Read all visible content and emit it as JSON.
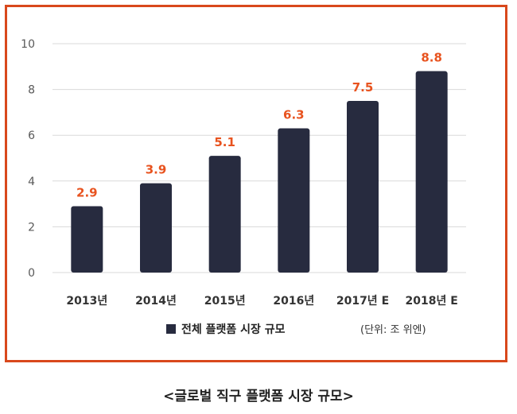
{
  "chart_data": {
    "type": "bar",
    "categories": [
      "2013년",
      "2014년",
      "2015년",
      "2016년",
      "2017년 E",
      "2018년 E"
    ],
    "series": [
      {
        "name": "전체 플랫폼 시장 규모",
        "values": [
          2.9,
          3.9,
          5.1,
          6.3,
          7.5,
          8.8
        ]
      }
    ],
    "data_labels": [
      "2.9",
      "3.9",
      "5.1",
      "6.3",
      "7.5",
      "8.8"
    ],
    "y_ticks": [
      0,
      2,
      4,
      6,
      8,
      10
    ],
    "ylim": [
      0,
      10
    ],
    "grid": true,
    "legend_position": "bottom",
    "unit_note": "(단위: 조 위엔)",
    "colors": {
      "bar": "#272b3f",
      "label": "#e8531f",
      "frame": "#d9481c",
      "grid": "#d9d9d9",
      "axis_text": "#595959"
    }
  },
  "caption": "<글로벌 직구 플랫폼 시장 규모>"
}
